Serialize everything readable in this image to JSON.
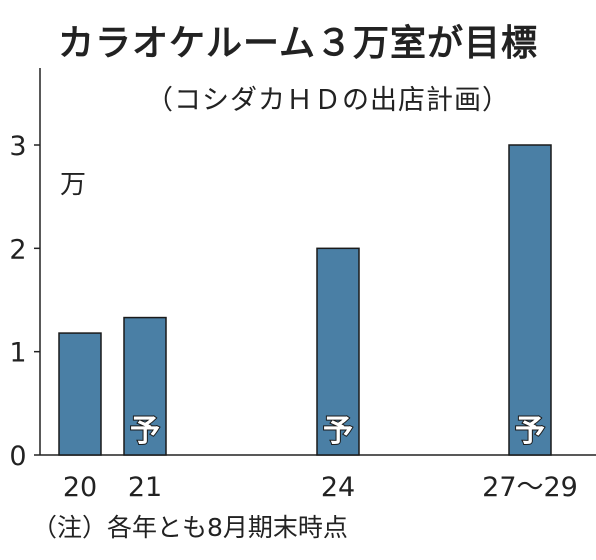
{
  "chart_data": {
    "type": "bar",
    "title": "カラオケルーム３万室が目標",
    "subtitle": "（コシダカＨＤの出店計画）",
    "unit_label": "万",
    "categories": [
      "20",
      "21",
      "24",
      "27～29"
    ],
    "values": [
      1.18,
      1.33,
      2.0,
      3.0
    ],
    "bar_labels": [
      "",
      "予",
      "予",
      "予"
    ],
    "yticks": [
      0,
      1,
      2,
      3
    ],
    "ylim": [
      0,
      3.7
    ],
    "grid": false,
    "bar_color": "#4a7fa5",
    "note": "（注）各年とも8月期末時点"
  }
}
